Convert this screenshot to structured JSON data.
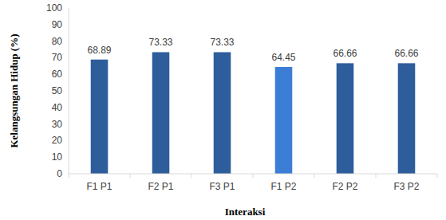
{
  "chart_data": {
    "type": "bar",
    "categories": [
      "F1 P1",
      "F2 P1",
      "F3 P1",
      "F1 P2",
      "F2 P2",
      "F3 P2"
    ],
    "values": [
      68.89,
      73.33,
      73.33,
      64.45,
      66.66,
      66.66
    ],
    "colors": [
      "#2e5d9c",
      "#2e5d9c",
      "#2e5d9c",
      "#3c7dd6",
      "#2e5d9c",
      "#2e5d9c"
    ],
    "x_label": "Interaksi",
    "y_label": "Kelangsungan Hidup (%)",
    "ylim": [
      0,
      100
    ],
    "yticks": [
      0,
      10,
      20,
      30,
      40,
      50,
      60,
      70,
      80,
      90,
      100
    ],
    "grid": false,
    "data_labels": true
  }
}
